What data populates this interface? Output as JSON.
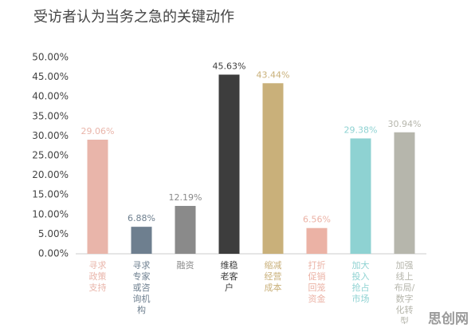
{
  "chart_data": {
    "type": "bar",
    "title": "受访者认为当务之急的关键动作",
    "categories": [
      "寻求政策支持",
      "寻求专家或咨询机构",
      "融资",
      "维稳老客户",
      "缩减经营成本",
      "打折促销回笼资金",
      "加大投入抢占市场",
      "加强线上布局/数字化转型"
    ],
    "values": [
      29.06,
      6.88,
      12.19,
      45.63,
      43.44,
      6.56,
      29.38,
      30.94
    ],
    "value_labels": [
      "29.06%",
      "6.88%",
      "12.19%",
      "45.63%",
      "43.44%",
      "6.56%",
      "29.38%",
      "30.94%"
    ],
    "colors": [
      "#e9b5aa",
      "#6e7f8f",
      "#8a8a8a",
      "#3d3d3d",
      "#c9b07a",
      "#ebb2a5",
      "#8ed2d2",
      "#b6b6ac"
    ],
    "ylim": [
      0,
      50
    ],
    "yticks": [
      {
        "value": 0,
        "label": "0.00%"
      },
      {
        "value": 5,
        "label": "5.00%"
      },
      {
        "value": 10,
        "label": "10.00%"
      },
      {
        "value": 15,
        "label": "15.00%"
      },
      {
        "value": 20,
        "label": "20.00%"
      },
      {
        "value": 25,
        "label": "25.00%"
      },
      {
        "value": 30,
        "label": "30.00%"
      },
      {
        "value": 35,
        "label": "35.00%"
      },
      {
        "value": 40,
        "label": "40.00%"
      },
      {
        "value": 45,
        "label": "45.00%"
      },
      {
        "value": 50,
        "label": "50.00%"
      }
    ],
    "grid": false,
    "watermark": "思创网"
  }
}
